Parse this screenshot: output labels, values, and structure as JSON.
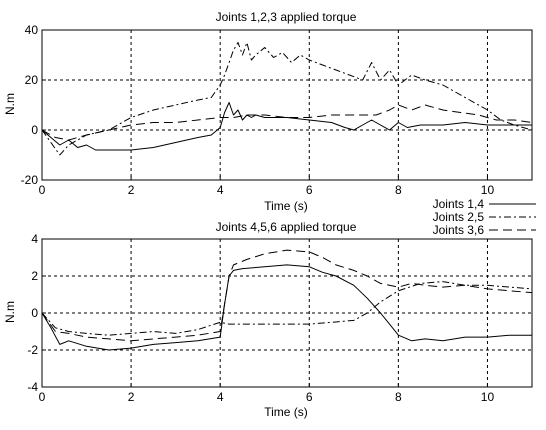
{
  "chart_data": [
    {
      "type": "line",
      "title": "Joints 1,2,3 applied torque",
      "xlabel": "Time (s)",
      "ylabel": "N.m",
      "xlim": [
        0,
        11
      ],
      "ylim": [
        -20,
        40
      ],
      "xticks": [
        "0",
        "2",
        "4",
        "6",
        "8",
        "10"
      ],
      "yticks": [
        "-20",
        "0",
        "20",
        "40"
      ],
      "grid": true,
      "legend": null,
      "series": [
        {
          "name": "Joints 1,4",
          "style": "solid",
          "x": [
            0,
            0.2,
            0.4,
            0.6,
            0.8,
            1.0,
            1.2,
            1.5,
            2.0,
            2.5,
            3.0,
            3.5,
            3.8,
            4.0,
            4.1,
            4.2,
            4.3,
            4.4,
            4.5,
            4.6,
            4.7,
            4.8,
            5.0,
            5.5,
            6.0,
            6.5,
            6.8,
            7.0,
            7.2,
            7.4,
            7.6,
            7.8,
            8.0,
            8.2,
            8.5,
            9.0,
            9.5,
            10.0,
            10.5,
            11.0
          ],
          "y": [
            0,
            -3,
            -6,
            -4,
            -7,
            -6,
            -8,
            -8,
            -8,
            -7,
            -5,
            -3,
            -2,
            1,
            7,
            11,
            6,
            8,
            4,
            6,
            5,
            6,
            5,
            5,
            4,
            3,
            1,
            0,
            2,
            4,
            2,
            0,
            3,
            1,
            2,
            2,
            3,
            2,
            2,
            2
          ]
        },
        {
          "name": "Joints 2,5",
          "style": "dashdot",
          "x": [
            0,
            0.2,
            0.4,
            0.6,
            0.8,
            1.0,
            1.5,
            2.0,
            2.5,
            3.0,
            3.5,
            3.8,
            4.0,
            4.1,
            4.2,
            4.3,
            4.4,
            4.5,
            4.6,
            4.7,
            4.8,
            5.0,
            5.2,
            5.4,
            5.6,
            5.8,
            6.0,
            6.3,
            6.6,
            6.9,
            7.2,
            7.4,
            7.6,
            7.8,
            8.0,
            8.3,
            8.6,
            9.0,
            9.3,
            9.6,
            10.0,
            10.3,
            10.6,
            11.0
          ],
          "y": [
            0,
            -5,
            -10,
            -6,
            -4,
            -2,
            0,
            5,
            8,
            10,
            12,
            13,
            18,
            22,
            27,
            32,
            35,
            30,
            35,
            28,
            30,
            33,
            29,
            31,
            27,
            30,
            28,
            26,
            24,
            22,
            20,
            27,
            20,
            24,
            18,
            22,
            20,
            18,
            15,
            12,
            8,
            4,
            2,
            0
          ]
        },
        {
          "name": "Joints 3,6",
          "style": "dashed",
          "x": [
            0,
            0.3,
            0.6,
            1.0,
            1.5,
            2.0,
            2.5,
            3.0,
            3.5,
            4.0,
            4.3,
            4.6,
            5.0,
            5.5,
            6.0,
            6.5,
            7.0,
            7.5,
            7.8,
            8.0,
            8.3,
            8.6,
            9.0,
            9.4,
            9.8,
            10.2,
            10.6,
            11.0
          ],
          "y": [
            0,
            -3,
            -4,
            -2,
            0,
            2,
            3,
            3,
            4,
            5,
            5,
            6,
            6,
            5,
            5,
            6,
            6,
            6,
            8,
            10,
            8,
            10,
            8,
            7,
            6,
            4,
            4,
            3
          ]
        }
      ]
    },
    {
      "type": "line",
      "title": "Joints 4,5,6 applied torque",
      "xlabel": "Time (s)",
      "ylabel": "N.m",
      "xlim": [
        0,
        11
      ],
      "ylim": [
        -4,
        4
      ],
      "xticks": [
        "0",
        "2",
        "4",
        "6",
        "8",
        "10"
      ],
      "yticks": [
        "-4",
        "-2",
        "0",
        "2",
        "4"
      ],
      "grid": true,
      "legend": "top-right",
      "series": [
        {
          "name": "Joints 1,4",
          "style": "solid",
          "x": [
            0,
            0.2,
            0.4,
            0.6,
            1.0,
            1.5,
            2.0,
            2.5,
            3.0,
            3.5,
            4.0,
            4.1,
            4.2,
            4.3,
            4.5,
            5.0,
            5.5,
            6.0,
            6.3,
            6.6,
            7.0,
            7.3,
            7.6,
            7.8,
            8.0,
            8.3,
            8.6,
            9.0,
            9.5,
            10.0,
            10.5,
            11.0
          ],
          "y": [
            0,
            -0.8,
            -1.7,
            -1.5,
            -1.8,
            -2.0,
            -1.9,
            -1.7,
            -1.6,
            -1.5,
            -1.3,
            0.5,
            2.0,
            2.3,
            2.4,
            2.5,
            2.6,
            2.5,
            2.2,
            2.0,
            1.5,
            0.8,
            0.0,
            -0.6,
            -1.2,
            -1.5,
            -1.4,
            -1.5,
            -1.3,
            -1.3,
            -1.2,
            -1.2
          ]
        },
        {
          "name": "Joints 2,5",
          "style": "dashdot",
          "x": [
            0,
            0.3,
            0.6,
            1.0,
            1.5,
            2.0,
            2.5,
            3.0,
            3.5,
            4.0,
            4.2,
            4.5,
            5.0,
            5.5,
            6.0,
            6.5,
            7.0,
            7.3,
            7.6,
            8.0,
            8.5,
            9.0,
            9.5,
            10.0,
            10.5,
            11.0
          ],
          "y": [
            0,
            -0.8,
            -1.0,
            -1.1,
            -1.2,
            -1.1,
            -1.0,
            -1.1,
            -0.9,
            -0.5,
            -0.6,
            -0.6,
            -0.6,
            -0.6,
            -0.6,
            -0.5,
            -0.4,
            0.0,
            0.6,
            1.2,
            1.6,
            1.7,
            1.5,
            1.5,
            1.4,
            1.3
          ]
        },
        {
          "name": "Joints 3,6",
          "style": "dashed",
          "x": [
            0,
            0.3,
            0.6,
            1.0,
            1.5,
            2.0,
            2.5,
            3.0,
            3.5,
            4.0,
            4.1,
            4.2,
            4.3,
            4.6,
            5.0,
            5.5,
            6.0,
            6.3,
            6.6,
            7.0,
            7.3,
            7.6,
            8.0,
            8.3,
            8.6,
            9.0,
            9.5,
            10.0,
            10.5,
            11.0
          ],
          "y": [
            0,
            -1.0,
            -1.1,
            -1.3,
            -1.4,
            -1.5,
            -1.4,
            -1.3,
            -1.2,
            -1.0,
            0.5,
            2.0,
            2.6,
            2.9,
            3.2,
            3.4,
            3.3,
            3.0,
            2.6,
            2.3,
            2.0,
            1.6,
            1.4,
            1.6,
            1.5,
            1.4,
            1.5,
            1.3,
            1.2,
            1.1
          ]
        }
      ]
    }
  ]
}
